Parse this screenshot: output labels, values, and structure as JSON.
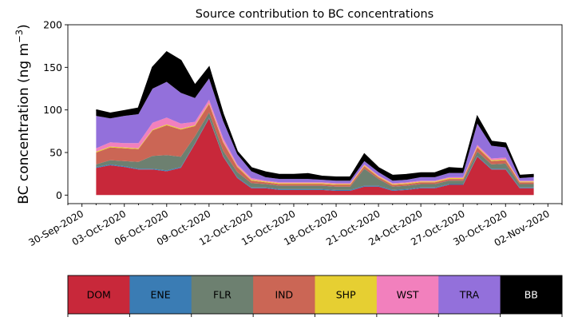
{
  "chart_data": {
    "type": "area",
    "stacked": true,
    "title": "Source contribution to BC concentrations",
    "ylabel_main": "BC concentration (ng m",
    "ylabel_unit_sup": "−3",
    "ylabel_close": ")",
    "ylim": [
      -10,
      200
    ],
    "yticks": [
      0,
      50,
      100,
      150,
      200
    ],
    "xlim": [
      "2020-09-29",
      "2020-11-03"
    ],
    "xticks": [
      "30-Sep-2020",
      "03-Oct-2020",
      "06-Oct-2020",
      "09-Oct-2020",
      "12-Oct-2020",
      "15-Oct-2020",
      "18-Oct-2020",
      "21-Oct-2020",
      "24-Oct-2020",
      "27-Oct-2020",
      "30-Oct-2020",
      "02-Nov-2020"
    ],
    "x": [
      "2020-10-01",
      "2020-10-02",
      "2020-10-03",
      "2020-10-04",
      "2020-10-05",
      "2020-10-06",
      "2020-10-07",
      "2020-10-08",
      "2020-10-09",
      "2020-10-10",
      "2020-10-11",
      "2020-10-12",
      "2020-10-13",
      "2020-10-14",
      "2020-10-15",
      "2020-10-16",
      "2020-10-17",
      "2020-10-18",
      "2020-10-19",
      "2020-10-20",
      "2020-10-21",
      "2020-10-22",
      "2020-10-23",
      "2020-10-24",
      "2020-10-25",
      "2020-10-26",
      "2020-10-27",
      "2020-10-28",
      "2020-10-29",
      "2020-10-30",
      "2020-10-31",
      "2020-11-01"
    ],
    "series": [
      {
        "name": "DOM",
        "color": "#c8283a",
        "values": [
          32,
          35,
          33,
          30,
          30,
          28,
          32,
          60,
          90,
          45,
          20,
          8,
          8,
          6,
          6,
          6,
          6,
          5,
          5,
          10,
          10,
          5,
          6,
          8,
          8,
          12,
          12,
          45,
          30,
          30,
          8,
          8
        ]
      },
      {
        "name": "ENE",
        "color": "#3a7cb4",
        "values": [
          1,
          1,
          1,
          1,
          1,
          1,
          1,
          1,
          1,
          1,
          1,
          1,
          1,
          1,
          1,
          1,
          1,
          1,
          1,
          1,
          1,
          1,
          1,
          1,
          1,
          1,
          1,
          1,
          1,
          1,
          1,
          1
        ]
      },
      {
        "name": "FLR",
        "color": "#6d8070",
        "values": [
          3,
          5,
          6,
          8,
          15,
          18,
          12,
          8,
          6,
          6,
          6,
          5,
          4,
          4,
          4,
          4,
          4,
          4,
          4,
          20,
          8,
          4,
          4,
          4,
          4,
          4,
          4,
          5,
          5,
          6,
          4,
          4
        ]
      },
      {
        "name": "IND",
        "color": "#cb6655",
        "values": [
          14,
          15,
          15,
          15,
          30,
          35,
          32,
          12,
          10,
          10,
          6,
          3,
          2,
          2,
          2,
          2,
          2,
          2,
          2,
          3,
          2,
          2,
          2,
          2,
          2,
          2,
          2,
          5,
          4,
          4,
          2,
          2
        ]
      },
      {
        "name": "SHP",
        "color": "#e6cf32",
        "values": [
          1,
          1,
          1,
          1,
          1,
          1,
          1,
          1,
          1,
          1,
          1,
          1,
          1,
          1,
          1,
          1,
          1,
          1,
          1,
          1,
          1,
          1,
          1,
          1,
          1,
          1,
          1,
          1,
          1,
          1,
          1,
          1
        ]
      },
      {
        "name": "WST",
        "color": "#f280bd",
        "values": [
          4,
          5,
          5,
          6,
          8,
          8,
          6,
          4,
          4,
          4,
          2,
          2,
          1,
          1,
          1,
          1,
          1,
          1,
          1,
          1,
          1,
          1,
          1,
          1,
          1,
          1,
          1,
          2,
          2,
          2,
          1,
          1
        ]
      },
      {
        "name": "TRA",
        "color": "#9370db",
        "values": [
          38,
          28,
          32,
          34,
          40,
          42,
          36,
          28,
          25,
          20,
          12,
          8,
          4,
          4,
          4,
          4,
          3,
          3,
          3,
          4,
          4,
          3,
          3,
          4,
          4,
          5,
          5,
          25,
          15,
          12,
          3,
          4
        ]
      },
      {
        "name": "BB",
        "color": "#000000",
        "values": [
          7,
          6,
          6,
          7,
          25,
          35,
          38,
          15,
          13,
          8,
          3,
          4,
          6,
          5,
          5,
          6,
          4,
          4,
          4,
          8,
          5,
          6,
          6,
          5,
          5,
          6,
          5,
          8,
          5,
          5,
          3,
          3
        ]
      }
    ],
    "legend": [
      "DOM",
      "ENE",
      "FLR",
      "IND",
      "SHP",
      "WST",
      "TRA",
      "BB"
    ],
    "legend_placement": "bottom (colorbar-style)"
  }
}
